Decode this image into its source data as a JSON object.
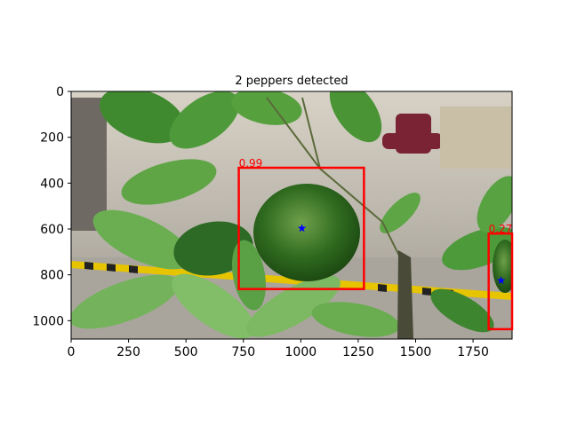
{
  "chart_data": {
    "type": "scatter",
    "title": "2 peppers detected",
    "xlabel": "",
    "ylabel": "",
    "xlim": [
      0,
      1920
    ],
    "ylim": [
      1080,
      0
    ],
    "y_inverted": true,
    "grid": false,
    "xticks": [
      0,
      250,
      500,
      750,
      1000,
      1250,
      1500,
      1750
    ],
    "yticks": [
      0,
      200,
      400,
      600,
      800,
      1000
    ],
    "background": "photo of green plant leaves with two green bell peppers, office/warehouse floor with yellow-black hazard tape",
    "detections": [
      {
        "label": "0.99",
        "x_min": 730,
        "y_min": 333,
        "x_max": 1275,
        "y_max": 862,
        "center": [
          1005,
          597
        ]
      },
      {
        "label": "0.27",
        "x_min": 1818,
        "y_min": 620,
        "x_max": 1920,
        "y_max": 1037,
        "center": [
          1872,
          825
        ]
      }
    ],
    "colors": {
      "box": "#ff0000",
      "center_marker": "#0000ff",
      "score_text": "#ff0000"
    }
  }
}
